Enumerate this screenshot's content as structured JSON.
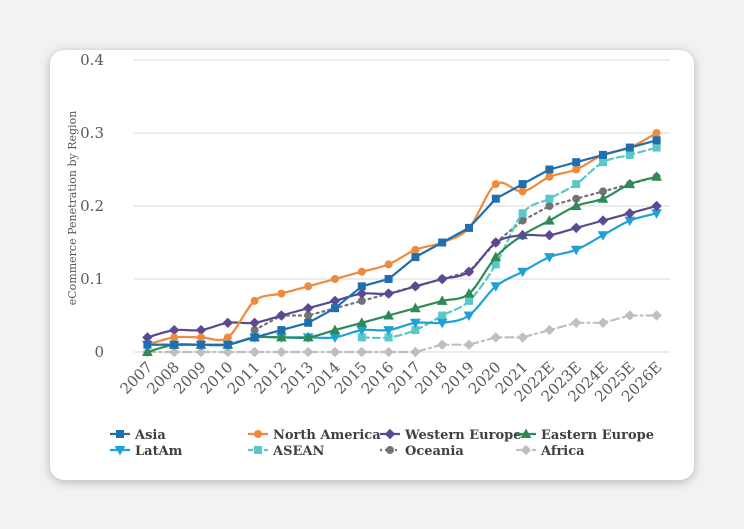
{
  "chart_data": {
    "type": "line",
    "ylabel": "eCommerce Penetration by Region",
    "xlabel": "",
    "ylim": [
      0,
      0.4
    ],
    "yticks": [
      {
        "value": 0,
        "label": "0"
      },
      {
        "value": 0.1,
        "label": "0.1"
      },
      {
        "value": 0.2,
        "label": "0.2"
      },
      {
        "value": 0.3,
        "label": "0.3"
      },
      {
        "value": 0.4,
        "label": "0.4"
      }
    ],
    "grid": true,
    "legend": "bottom",
    "categories": [
      "2007",
      "2008",
      "2009",
      "2010",
      "2011",
      "2012",
      "2013",
      "2014",
      "2015",
      "2016",
      "2017",
      "2018",
      "2019",
      "2020",
      "2021",
      "2022E",
      "2023E",
      "2024E",
      "2025E",
      "2026E"
    ],
    "series": [
      {
        "name": "Asia",
        "color": "#1f6fb0",
        "marker": "square",
        "dash": "solid",
        "smooth": false,
        "values": [
          0.01,
          0.01,
          0.01,
          0.01,
          0.02,
          0.03,
          0.04,
          0.06,
          0.09,
          0.1,
          0.13,
          0.15,
          0.17,
          0.21,
          0.23,
          0.25,
          0.26,
          0.27,
          0.28,
          0.29
        ]
      },
      {
        "name": "North America",
        "color": "#ef8a3c",
        "marker": "circle",
        "dash": "solid",
        "smooth": true,
        "values": [
          0.01,
          0.02,
          0.02,
          0.02,
          0.07,
          0.08,
          0.09,
          0.1,
          0.11,
          0.12,
          0.14,
          0.15,
          0.17,
          0.23,
          0.22,
          0.24,
          0.25,
          0.27,
          0.28,
          0.3
        ]
      },
      {
        "name": "Western Europe",
        "color": "#5b4a91",
        "marker": "diamond",
        "dash": "solid",
        "smooth": true,
        "values": [
          0.02,
          0.03,
          0.03,
          0.04,
          0.04,
          0.05,
          0.06,
          0.07,
          0.08,
          0.08,
          0.09,
          0.1,
          0.11,
          0.15,
          0.16,
          0.16,
          0.17,
          0.18,
          0.19,
          0.2
        ]
      },
      {
        "name": "Eastern Europe",
        "color": "#2e8b57",
        "marker": "triangle-up",
        "dash": "solid",
        "smooth": true,
        "values": [
          0,
          0.01,
          0.01,
          0.01,
          0.02,
          0.02,
          0.02,
          0.03,
          0.04,
          0.05,
          0.06,
          0.07,
          0.08,
          0.13,
          0.16,
          0.18,
          0.2,
          0.21,
          0.23,
          0.24
        ]
      },
      {
        "name": "LatAm",
        "color": "#1fa0d8",
        "marker": "triangle-down",
        "dash": "solid",
        "smooth": true,
        "values": [
          0.01,
          0.01,
          0.01,
          0.01,
          0.02,
          0.02,
          0.02,
          0.02,
          0.03,
          0.03,
          0.04,
          0.04,
          0.05,
          0.09,
          0.11,
          0.13,
          0.14,
          0.16,
          0.18,
          0.19
        ]
      },
      {
        "name": "ASEAN",
        "color": "#5bc8c8",
        "marker": "square",
        "dash": "dashed",
        "smooth": true,
        "values": [
          null,
          null,
          null,
          null,
          null,
          null,
          null,
          null,
          0.02,
          0.02,
          0.03,
          0.05,
          0.07,
          0.12,
          0.19,
          0.21,
          0.23,
          0.26,
          0.27,
          0.28
        ]
      },
      {
        "name": "Oceania",
        "color": "#737373",
        "marker": "circle",
        "dash": "dotted",
        "smooth": false,
        "values": [
          null,
          null,
          null,
          null,
          0.03,
          0.05,
          0.05,
          0.06,
          0.07,
          0.08,
          0.09,
          0.1,
          0.11,
          0.15,
          0.18,
          0.2,
          0.21,
          0.22,
          0.23,
          0.24
        ]
      },
      {
        "name": "Africa",
        "color": "#bfbfbf",
        "marker": "diamond",
        "dash": "dashdot",
        "smooth": false,
        "values": [
          0,
          0,
          0,
          0,
          0,
          0,
          0,
          0,
          0,
          0,
          0,
          0.01,
          0.01,
          0.02,
          0.02,
          0.03,
          0.04,
          0.04,
          0.05,
          0.05
        ]
      }
    ]
  }
}
